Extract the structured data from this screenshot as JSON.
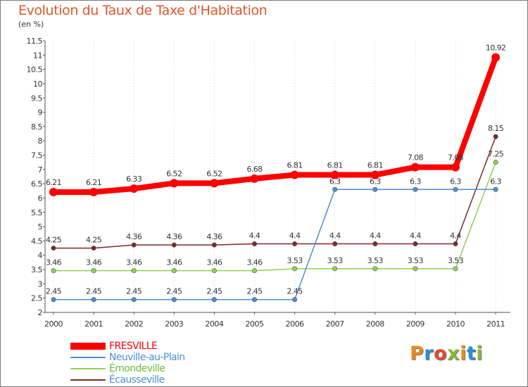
{
  "title": "Evolution du Taux de Taxe d'Habitation",
  "subtitle": "(en %)",
  "brand": {
    "text": "Proxiti",
    "letter_colors": [
      "#e58b22",
      "#2a8dd4",
      "#e1492f",
      "#88b83a",
      "#e58b22",
      "#2a8dd4",
      "#88b83a"
    ]
  },
  "chart_data": {
    "type": "line",
    "title": "Evolution du Taux de Taxe d'Habitation",
    "ylabel": "(en %)",
    "xlabel": "",
    "ylim": [
      2,
      11.5
    ],
    "yticks": [
      "2",
      "2.5",
      "3",
      "3.5",
      "4",
      "4.5",
      "5",
      "5.5",
      "6",
      "6.5",
      "7",
      "7.5",
      "8",
      "8.5",
      "9",
      "9.5",
      "10",
      "10.5",
      "11",
      "11.5"
    ],
    "categories": [
      "2000",
      "2001",
      "2002",
      "2003",
      "2004",
      "2005",
      "2006",
      "2007",
      "2008",
      "2009",
      "2010",
      "2011"
    ],
    "series": [
      {
        "name": "FRESVILLE",
        "color": "#ff0000",
        "values": [
          6.21,
          6.21,
          6.33,
          6.52,
          6.52,
          6.68,
          6.81,
          6.81,
          6.81,
          7.08,
          7.08,
          10.92
        ],
        "labels": [
          "6.21",
          "6.21",
          "6.33",
          "6.52",
          "6.52",
          "6.68",
          "6.81",
          "6.81",
          "6.81",
          "7.08",
          "7.08",
          "10.92"
        ]
      },
      {
        "name": "Neuville-au-Plain",
        "color": "#4d8fcf",
        "values": [
          2.45,
          2.45,
          2.45,
          2.45,
          2.45,
          2.45,
          2.45,
          6.3,
          6.3,
          6.3,
          6.3,
          6.3
        ],
        "labels": [
          "2.45",
          "2.45",
          "2.45",
          "2.45",
          "2.45",
          "2.45",
          "2.45",
          "6.3",
          "6.3",
          "6.3",
          "6.3",
          "6.3"
        ]
      },
      {
        "name": "Émondeville",
        "color": "#8fd14f",
        "values": [
          3.46,
          3.46,
          3.46,
          3.46,
          3.46,
          3.46,
          3.53,
          3.53,
          3.53,
          3.53,
          3.53,
          7.25
        ],
        "labels": [
          "3.46",
          "3.46",
          "3.46",
          "3.46",
          "3.46",
          "3.46",
          "3.53",
          "3.53",
          "3.53",
          "3.53",
          "3.53",
          "7.25"
        ]
      },
      {
        "name": "Écausseville",
        "color": "#7a2a2a",
        "values": [
          4.25,
          4.25,
          4.36,
          4.36,
          4.36,
          4.4,
          4.4,
          4.4,
          4.4,
          4.4,
          4.4,
          8.15
        ],
        "labels": [
          "4.25",
          "4.25",
          "4.36",
          "4.36",
          "4.36",
          "4.4",
          "4.4",
          "4.4",
          "4.4",
          "4.4",
          "4.4",
          "8.15"
        ]
      }
    ]
  }
}
